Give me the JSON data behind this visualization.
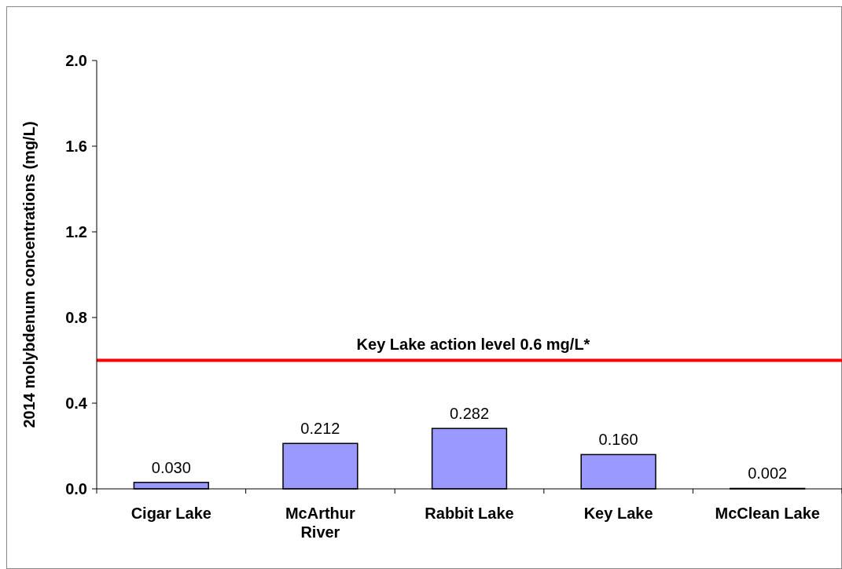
{
  "chart_data": {
    "type": "bar",
    "ylabel": "2014 molybdenum concentrations (mg/L)",
    "categories": [
      "Cigar Lake",
      "McArthur River",
      "Rabbit Lake",
      "Key Lake",
      "McClean Lake"
    ],
    "values": [
      0.03,
      0.212,
      0.282,
      0.16,
      0.002
    ],
    "value_labels": [
      "0.030",
      "0.212",
      "0.282",
      "0.160",
      "0.002"
    ],
    "color": "#9999ff",
    "ylim": [
      0,
      2
    ],
    "yticks": [
      {
        "value": 0,
        "label": "0.0"
      },
      {
        "value": 0.4,
        "label": "0.4"
      },
      {
        "value": 0.8,
        "label": "0.8"
      },
      {
        "value": 1.2,
        "label": "1.2"
      },
      {
        "value": 1.6,
        "label": "1.6"
      },
      {
        "value": 2,
        "label": "2.0"
      }
    ],
    "ref_lines": [
      {
        "axis": "y",
        "value": 0.6,
        "label": "Key Lake action level 0.6 mg/L*",
        "color": "#ff0000",
        "line_style": "solid"
      }
    ]
  }
}
